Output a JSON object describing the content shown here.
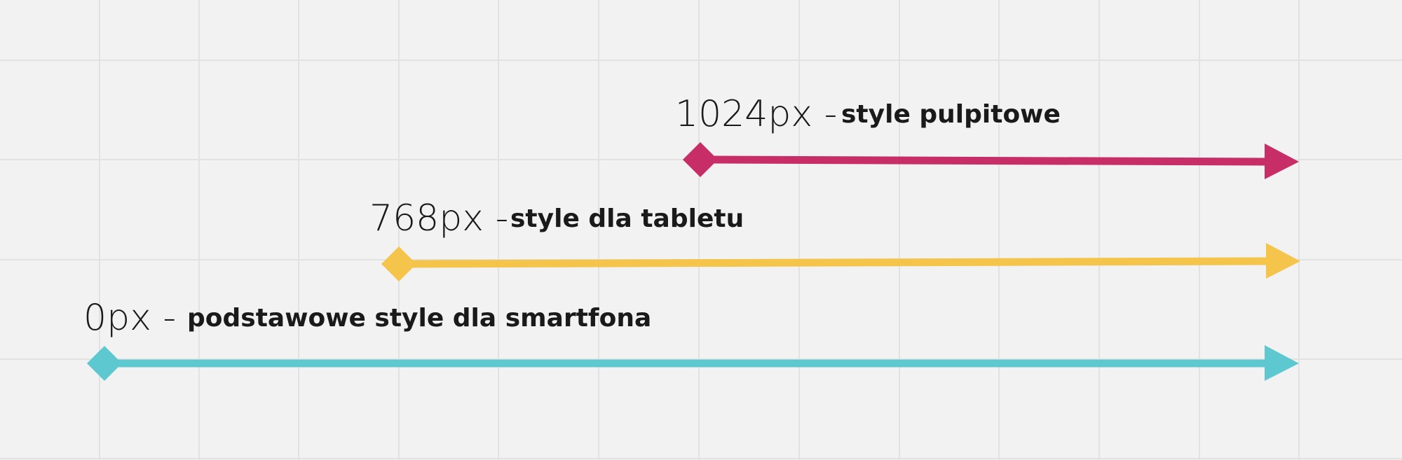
{
  "breakpoints": [
    {
      "id": "desktop",
      "breakpoint_label": "1024px -",
      "description": "style pulpitowe",
      "color": "#c72d66"
    },
    {
      "id": "tablet",
      "breakpoint_label": "768px -",
      "description": "style dla tabletu",
      "color": "#f4c54a"
    },
    {
      "id": "smartphone",
      "breakpoint_label": "0px -",
      "description": "podstawowe style dla smartfona",
      "color": "#5ec8d1"
    }
  ],
  "colors": {
    "background": "#f2f2f2",
    "grid": "#e2e2e2",
    "text": "#1a1a1a"
  }
}
